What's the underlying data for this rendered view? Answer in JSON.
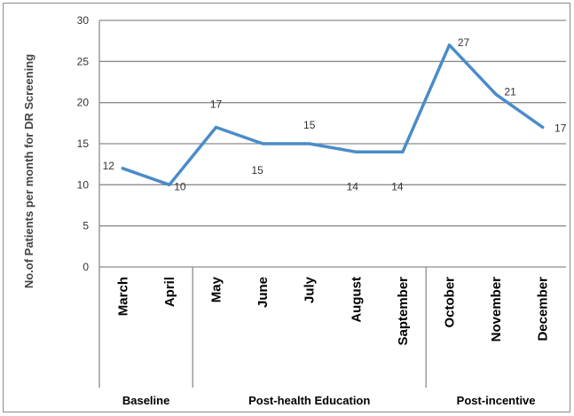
{
  "chart_data": {
    "type": "line",
    "ylabel": "No.of Patients per month for DR Screening",
    "ylim": [
      0,
      30
    ],
    "yticks": [
      0,
      5,
      10,
      15,
      20,
      25,
      30
    ],
    "grid": true,
    "categories": [
      "March",
      "April",
      "May",
      "June",
      "July",
      "August",
      "Saptember",
      "October",
      "November",
      "December"
    ],
    "values": [
      12,
      10,
      17,
      15,
      15,
      14,
      14,
      27,
      21,
      17
    ],
    "data_labels": [
      "12",
      "10",
      "17",
      "15",
      "15",
      "14",
      "14",
      "27",
      "21",
      "17"
    ],
    "groups": [
      {
        "label": "Baseline",
        "categories": [
          "March",
          "April"
        ]
      },
      {
        "label": "Post-health Education",
        "categories": [
          "May",
          "June",
          "July",
          "August",
          "Saptember"
        ]
      },
      {
        "label": "Post-incentive",
        "categories": [
          "October",
          "November",
          "December"
        ]
      }
    ],
    "line_color": "#4a8cc9",
    "grid_color": "#8c8c8c"
  }
}
